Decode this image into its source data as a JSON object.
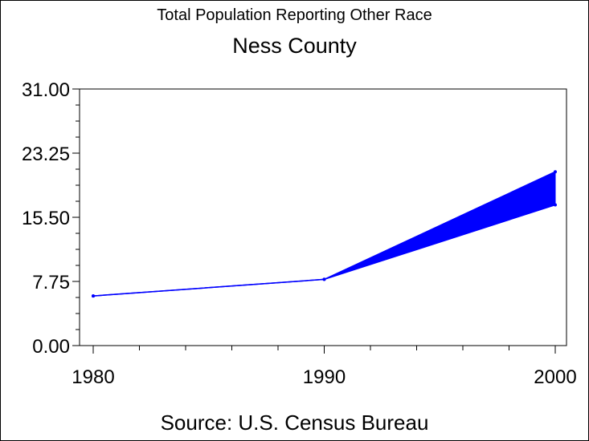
{
  "chart_data": {
    "type": "area",
    "title": "Total Population Reporting Other Race",
    "subtitle": "Ness County",
    "source": "Source: U.S. Census Bureau",
    "xlabel": "",
    "ylabel": "",
    "x_ticks": [
      "1980",
      "1990",
      "2000"
    ],
    "y_ticks": [
      "0.00",
      "7.75",
      "15.50",
      "23.25",
      "31.00"
    ],
    "xlim": [
      1980,
      2000
    ],
    "ylim": [
      0,
      31
    ],
    "grid": false,
    "series": [
      {
        "x": [
          1980,
          1990,
          2000
        ],
        "values": [
          6,
          8,
          21
        ]
      },
      {
        "x": [
          1980,
          1990,
          2000
        ],
        "values": [
          6,
          8,
          17
        ]
      }
    ],
    "colors": {
      "series": "#0000ff",
      "axis": "#000000",
      "background": "#ffffff"
    }
  }
}
